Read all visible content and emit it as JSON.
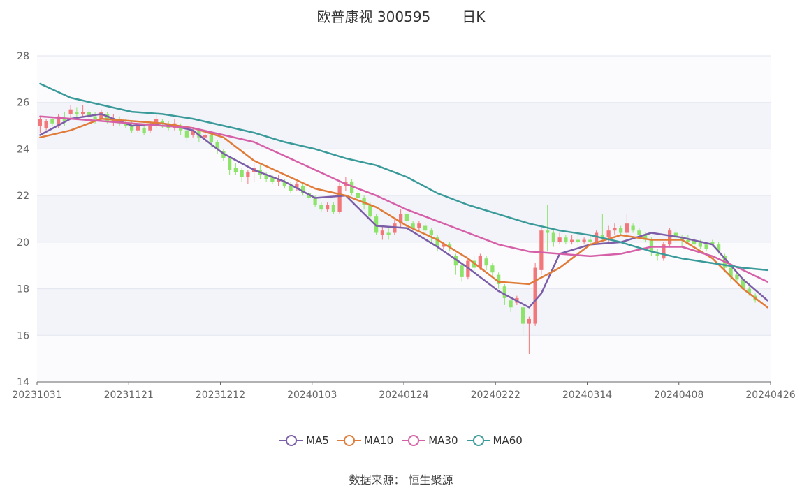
{
  "header": {
    "stock_name": "欧普康视 300595",
    "period": "日K"
  },
  "footer": {
    "source": "数据来源： 恒生聚源"
  },
  "chart_data": {
    "type": "candlestick",
    "ylim": [
      14,
      28
    ],
    "y_ticks": [
      "14",
      "16",
      "18",
      "20",
      "22",
      "24",
      "26",
      "28"
    ],
    "x_ticks": [
      "20231031",
      "20231121",
      "20231212",
      "20240103",
      "20240124",
      "20240222",
      "20240314",
      "20240408",
      "20240426"
    ],
    "candle_count": 120,
    "up_color": "#f2777a",
    "down_color": "#8ee36b",
    "candles": [
      [
        25.0,
        25.3,
        24.7,
        25.4
      ],
      [
        24.9,
        25.2,
        24.8,
        25.3
      ],
      [
        25.3,
        25.1,
        25.0,
        25.4
      ],
      [
        25.0,
        25.4,
        24.9,
        25.5
      ],
      [
        25.3,
        25.2,
        25.0,
        25.6
      ],
      [
        25.5,
        25.7,
        25.3,
        25.9
      ],
      [
        25.6,
        25.5,
        25.3,
        25.8
      ],
      [
        25.5,
        25.6,
        25.4,
        25.9
      ],
      [
        25.6,
        25.4,
        25.2,
        25.7
      ],
      [
        25.4,
        25.3,
        25.1,
        25.6
      ],
      [
        25.3,
        25.6,
        25.2,
        25.7
      ],
      [
        25.5,
        25.2,
        25.1,
        25.6
      ],
      [
        25.2,
        25.3,
        25.0,
        25.5
      ],
      [
        25.2,
        25.1,
        25.0,
        25.4
      ],
      [
        25.1,
        25.0,
        24.9,
        25.3
      ],
      [
        25.0,
        24.8,
        24.7,
        25.2
      ],
      [
        24.8,
        25.0,
        24.7,
        25.1
      ],
      [
        24.9,
        24.7,
        24.6,
        25.1
      ],
      [
        24.8,
        25.0,
        24.7,
        25.2
      ],
      [
        25.0,
        25.3,
        24.9,
        25.5
      ],
      [
        25.2,
        25.1,
        24.9,
        25.3
      ],
      [
        25.1,
        24.9,
        24.8,
        25.2
      ],
      [
        24.9,
        25.1,
        24.8,
        25.3
      ],
      [
        25.0,
        24.8,
        24.6,
        25.1
      ],
      [
        24.8,
        24.5,
        24.3,
        24.9
      ],
      [
        24.6,
        24.8,
        24.5,
        24.9
      ],
      [
        24.8,
        24.5,
        24.3,
        24.9
      ],
      [
        24.5,
        24.6,
        24.3,
        24.8
      ],
      [
        24.6,
        24.3,
        24.1,
        24.7
      ],
      [
        24.3,
        24.0,
        23.8,
        24.4
      ],
      [
        23.9,
        23.6,
        23.5,
        24.0
      ],
      [
        23.6,
        23.1,
        22.9,
        23.7
      ],
      [
        23.2,
        23.0,
        22.9,
        23.4
      ],
      [
        23.1,
        22.8,
        22.6,
        23.2
      ],
      [
        22.8,
        23.0,
        22.5,
        23.1
      ],
      [
        23.0,
        23.2,
        22.6,
        23.4
      ],
      [
        23.1,
        22.9,
        22.7,
        23.3
      ],
      [
        22.9,
        22.7,
        22.6,
        23.0
      ],
      [
        22.8,
        22.6,
        22.5,
        22.9
      ],
      [
        22.6,
        22.7,
        22.4,
        22.9
      ],
      [
        22.6,
        22.4,
        22.3,
        22.7
      ],
      [
        22.4,
        22.2,
        22.1,
        22.6
      ],
      [
        22.3,
        22.5,
        22.2,
        22.6
      ],
      [
        22.4,
        22.1,
        22.0,
        22.5
      ],
      [
        22.1,
        21.9,
        21.8,
        22.2
      ],
      [
        21.9,
        21.6,
        21.5,
        22.0
      ],
      [
        21.6,
        21.4,
        21.3,
        21.7
      ],
      [
        21.4,
        21.6,
        21.3,
        21.7
      ],
      [
        21.6,
        21.3,
        21.2,
        21.7
      ],
      [
        21.3,
        22.4,
        21.2,
        22.6
      ],
      [
        22.4,
        22.6,
        22.2,
        22.8
      ],
      [
        22.6,
        22.1,
        22.0,
        22.7
      ],
      [
        22.1,
        21.9,
        21.7,
        22.2
      ],
      [
        21.9,
        21.6,
        21.4,
        22.0
      ],
      [
        21.6,
        21.1,
        21.0,
        21.7
      ],
      [
        21.1,
        20.4,
        20.3,
        21.2
      ],
      [
        20.3,
        20.5,
        20.1,
        20.7
      ],
      [
        20.4,
        20.3,
        20.1,
        20.6
      ],
      [
        20.4,
        20.8,
        20.3,
        21.0
      ],
      [
        20.8,
        21.2,
        20.6,
        21.4
      ],
      [
        21.2,
        20.9,
        20.7,
        21.3
      ],
      [
        20.8,
        20.6,
        20.5,
        20.9
      ],
      [
        20.6,
        20.8,
        20.5,
        20.9
      ],
      [
        20.7,
        20.5,
        20.3,
        20.8
      ],
      [
        20.5,
        20.3,
        20.0,
        20.6
      ],
      [
        20.2,
        19.8,
        19.6,
        20.3
      ],
      [
        19.8,
        19.9,
        19.7,
        20.0
      ],
      [
        19.9,
        19.8,
        19.6,
        20.0
      ],
      [
        19.4,
        19.0,
        18.6,
        19.5
      ],
      [
        19.0,
        18.5,
        18.3,
        19.1
      ],
      [
        18.5,
        19.2,
        18.4,
        19.3
      ],
      [
        19.2,
        18.9,
        18.7,
        19.4
      ],
      [
        18.9,
        19.4,
        18.8,
        19.5
      ],
      [
        19.3,
        19.0,
        18.8,
        19.4
      ],
      [
        19.0,
        18.7,
        18.5,
        19.1
      ],
      [
        18.6,
        18.2,
        18.0,
        18.7
      ],
      [
        18.1,
        17.6,
        17.3,
        18.2
      ],
      [
        17.5,
        17.2,
        17.0,
        17.6
      ],
      [
        17.4,
        17.6,
        17.3,
        17.7
      ],
      [
        17.2,
        16.5,
        16.0,
        17.3
      ],
      [
        16.5,
        16.7,
        15.2,
        16.8
      ],
      [
        16.5,
        18.9,
        16.4,
        19.1
      ],
      [
        18.8,
        20.5,
        18.6,
        20.6
      ],
      [
        20.5,
        20.4,
        19.6,
        21.6
      ],
      [
        20.4,
        20.0,
        19.8,
        20.5
      ],
      [
        20.0,
        20.2,
        19.9,
        20.4
      ],
      [
        20.2,
        20.0,
        19.9,
        20.3
      ],
      [
        20.0,
        20.1,
        19.9,
        20.3
      ],
      [
        20.1,
        20.0,
        19.8,
        20.4
      ],
      [
        20.0,
        20.1,
        19.9,
        20.2
      ],
      [
        20.1,
        20.0,
        19.9,
        20.3
      ],
      [
        20.0,
        20.4,
        19.9,
        20.5
      ],
      [
        20.3,
        20.2,
        20.0,
        21.2
      ],
      [
        20.2,
        20.5,
        20.0,
        20.7
      ],
      [
        20.5,
        20.6,
        20.3,
        20.8
      ],
      [
        20.6,
        20.4,
        20.3,
        20.7
      ],
      [
        20.4,
        20.8,
        20.3,
        21.2
      ],
      [
        20.7,
        20.5,
        20.4,
        20.8
      ],
      [
        20.5,
        20.3,
        20.2,
        20.6
      ],
      [
        20.3,
        20.1,
        20.0,
        20.4
      ],
      [
        20.1,
        19.6,
        19.4,
        20.2
      ],
      [
        19.5,
        19.4,
        19.2,
        19.7
      ],
      [
        19.3,
        19.9,
        19.2,
        20.0
      ],
      [
        19.9,
        20.5,
        19.8,
        20.6
      ],
      [
        20.4,
        20.2,
        20.0,
        20.5
      ],
      [
        20.2,
        20.1,
        19.8,
        20.3
      ],
      [
        20.1,
        20.0,
        19.9,
        20.3
      ],
      [
        20.1,
        19.9,
        19.8,
        20.2
      ],
      [
        20.0,
        19.8,
        19.7,
        20.1
      ],
      [
        19.9,
        19.7,
        19.6,
        20.0
      ],
      [
        20.0,
        19.9,
        19.8,
        20.1
      ],
      [
        19.9,
        19.6,
        19.5,
        20.0
      ],
      [
        19.4,
        18.9,
        18.7,
        19.5
      ],
      [
        18.9,
        18.5,
        18.3,
        19.0
      ],
      [
        18.6,
        18.4,
        18.3,
        18.7
      ],
      [
        18.4,
        18.0,
        17.9,
        18.5
      ],
      [
        18.0,
        17.8,
        17.7,
        18.1
      ],
      [
        17.7,
        17.5,
        17.4,
        17.8
      ]
    ],
    "series": [
      {
        "name": "MA5",
        "color": "#7b5ea7",
        "x": [
          0,
          5,
          10,
          15,
          20,
          25,
          30,
          35,
          40,
          45,
          50,
          55,
          60,
          65,
          70,
          75,
          80,
          82,
          85,
          90,
          95,
          100,
          105,
          110,
          115,
          119
        ],
        "values": [
          24.6,
          25.3,
          25.5,
          25.0,
          25.1,
          24.8,
          23.8,
          23.1,
          22.6,
          21.9,
          22.0,
          20.7,
          20.6,
          19.8,
          18.9,
          17.9,
          17.2,
          17.8,
          19.5,
          19.9,
          20.0,
          20.4,
          20.2,
          19.9,
          18.4,
          17.5
        ]
      },
      {
        "name": "MA10",
        "color": "#e07b39",
        "x": [
          0,
          5,
          10,
          15,
          20,
          25,
          30,
          35,
          40,
          45,
          50,
          55,
          60,
          65,
          70,
          75,
          80,
          85,
          90,
          95,
          100,
          105,
          110,
          115,
          119
        ],
        "values": [
          24.5,
          24.8,
          25.3,
          25.2,
          25.1,
          24.9,
          24.5,
          23.5,
          22.9,
          22.3,
          22.0,
          21.5,
          20.7,
          20.1,
          19.3,
          18.3,
          18.2,
          18.9,
          19.9,
          20.3,
          20.1,
          20.1,
          19.3,
          18.0,
          17.2
        ]
      },
      {
        "name": "MA30",
        "color": "#d560a8",
        "x": [
          0,
          10,
          20,
          25,
          30,
          35,
          40,
          45,
          50,
          55,
          60,
          65,
          70,
          75,
          80,
          85,
          90,
          95,
          100,
          105,
          110,
          115,
          119
        ],
        "values": [
          25.4,
          25.2,
          25.0,
          24.9,
          24.6,
          24.3,
          23.7,
          23.1,
          22.5,
          22.0,
          21.4,
          20.9,
          20.4,
          19.9,
          19.6,
          19.5,
          19.4,
          19.5,
          19.8,
          19.8,
          19.4,
          18.8,
          18.3
        ]
      },
      {
        "name": "MA60",
        "color": "#3a9a9a",
        "x": [
          0,
          5,
          10,
          15,
          20,
          25,
          30,
          35,
          40,
          45,
          50,
          55,
          60,
          65,
          70,
          75,
          80,
          85,
          90,
          95,
          100,
          105,
          110,
          115,
          119
        ],
        "values": [
          26.8,
          26.2,
          25.9,
          25.6,
          25.5,
          25.3,
          25.0,
          24.7,
          24.3,
          24.0,
          23.6,
          23.3,
          22.8,
          22.1,
          21.6,
          21.2,
          20.8,
          20.5,
          20.3,
          20.0,
          19.6,
          19.3,
          19.1,
          18.9,
          18.8
        ]
      }
    ]
  }
}
